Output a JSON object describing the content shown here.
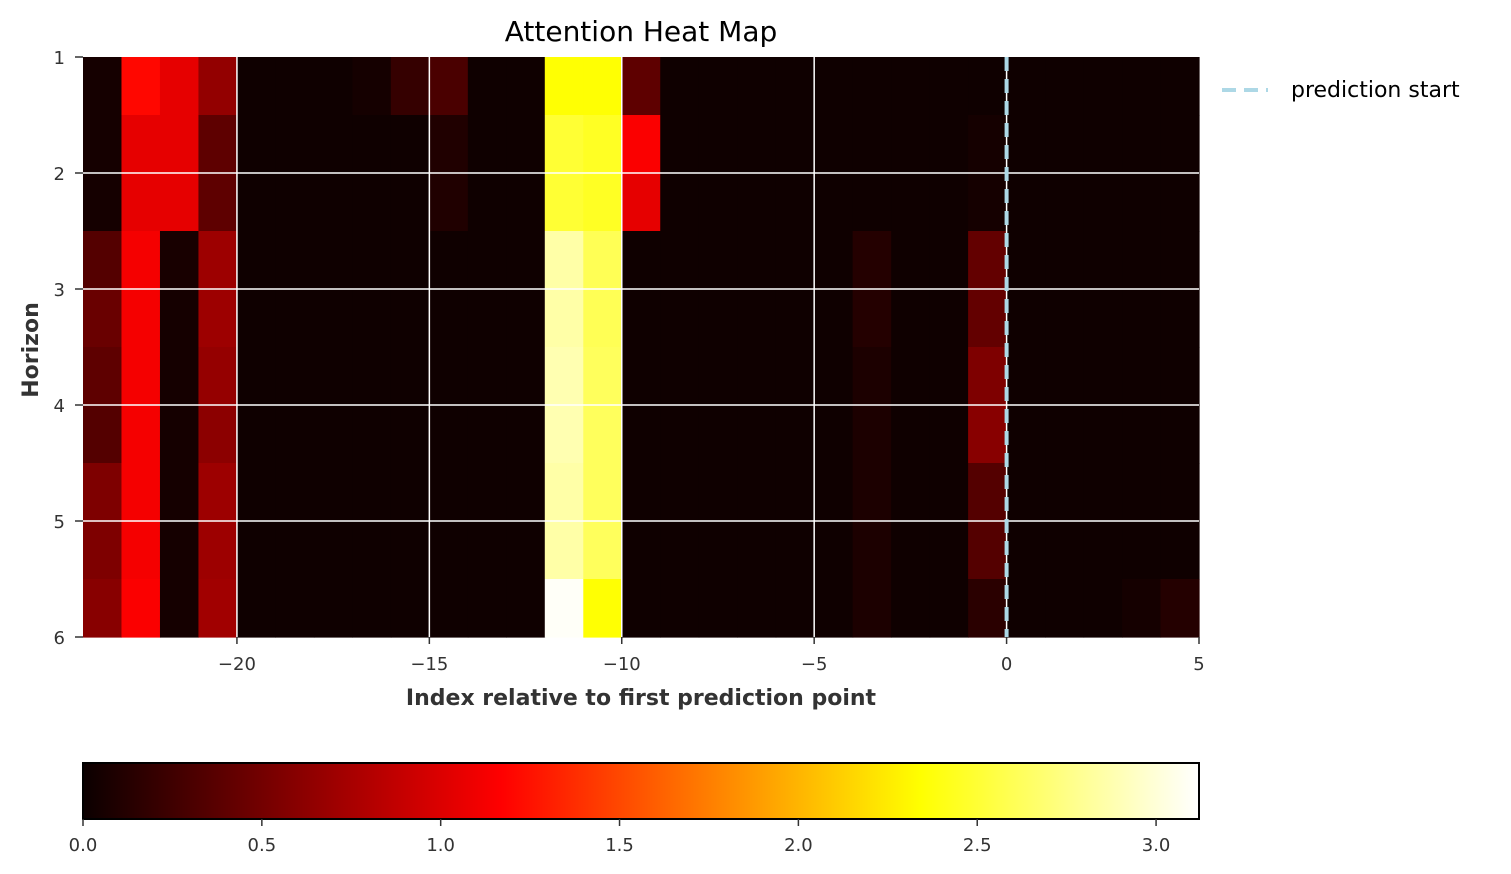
{
  "chart_data": {
    "type": "heatmap",
    "title": "Attention Heat Map",
    "xlabel": "Index relative to first prediction point",
    "ylabel": "Horizon",
    "x_range": [
      -24,
      5
    ],
    "y_range": [
      1,
      6
    ],
    "x_ticks": [
      -20,
      -15,
      -10,
      -5,
      0,
      5
    ],
    "x_tick_labels": [
      "−20",
      "−15",
      "−10",
      "−5",
      "0",
      "5"
    ],
    "y_ticks": [
      1,
      2,
      3,
      4,
      5,
      6
    ],
    "y_tick_labels": [
      "1",
      "2",
      "3",
      "4",
      "5",
      "6"
    ],
    "grid": true,
    "colormap": "hot",
    "colorbar": {
      "range": [
        0,
        3.12
      ],
      "ticks": [
        0,
        0.5,
        1.0,
        1.5,
        2.0,
        2.5,
        3.0
      ],
      "tick_labels": [
        "0.0",
        "0.5",
        "1.0",
        "1.5",
        "2.0",
        "2.5",
        "3.0"
      ]
    },
    "x": [
      -24,
      -23,
      -22,
      -21,
      -20,
      -19,
      -18,
      -17,
      -16,
      -15,
      -14,
      -13,
      -12,
      -11,
      -10,
      -9,
      -8,
      -7,
      -6,
      -5,
      -4,
      -3,
      -2,
      -1,
      0,
      1,
      2,
      3,
      4
    ],
    "y": [
      1,
      1.5,
      2,
      2.5,
      3,
      3.5,
      4,
      4.5,
      5,
      5.5
    ],
    "values": [
      [
        0.05,
        1.2,
        1.05,
        0.65,
        0.02,
        0.02,
        0.02,
        0.05,
        0.2,
        0.3,
        0.02,
        0.02,
        2.35,
        2.35,
        0.4,
        0.02,
        0.02,
        0.02,
        0.02,
        0.02,
        0.02,
        0.02,
        0.02,
        0.02,
        0.02,
        0.02,
        0.02,
        0.02,
        0.02
      ],
      [
        0.05,
        1.05,
        1.05,
        0.4,
        0.02,
        0.02,
        0.02,
        0.02,
        0.02,
        0.1,
        0.02,
        0.02,
        2.5,
        2.45,
        1.15,
        0.02,
        0.02,
        0.02,
        0.02,
        0.02,
        0.02,
        0.02,
        0.02,
        0.05,
        0.02,
        0.02,
        0.02,
        0.02,
        0.02
      ],
      [
        0.05,
        1.05,
        1.05,
        0.4,
        0.02,
        0.02,
        0.02,
        0.02,
        0.02,
        0.1,
        0.02,
        0.02,
        2.5,
        2.45,
        1.05,
        0.02,
        0.02,
        0.02,
        0.02,
        0.02,
        0.02,
        0.02,
        0.02,
        0.05,
        0.02,
        0.02,
        0.02,
        0.02,
        0.02
      ],
      [
        0.35,
        1.12,
        0.06,
        0.7,
        0.02,
        0.02,
        0.02,
        0.02,
        0.02,
        0.02,
        0.02,
        0.02,
        2.85,
        2.6,
        0.02,
        0.02,
        0.02,
        0.02,
        0.02,
        0.02,
        0.12,
        0.02,
        0.02,
        0.42,
        0.02,
        0.02,
        0.02,
        0.02,
        0.02
      ],
      [
        0.45,
        1.12,
        0.05,
        0.7,
        0.02,
        0.02,
        0.02,
        0.02,
        0.02,
        0.02,
        0.02,
        0.02,
        2.85,
        2.6,
        0.02,
        0.02,
        0.02,
        0.02,
        0.02,
        0.02,
        0.12,
        0.02,
        0.02,
        0.42,
        0.02,
        0.02,
        0.02,
        0.02,
        0.02
      ],
      [
        0.4,
        1.12,
        0.05,
        0.66,
        0.02,
        0.02,
        0.02,
        0.02,
        0.02,
        0.02,
        0.02,
        0.02,
        2.88,
        2.62,
        0.02,
        0.02,
        0.02,
        0.02,
        0.02,
        0.02,
        0.08,
        0.02,
        0.02,
        0.55,
        0.02,
        0.02,
        0.02,
        0.02,
        0.02
      ],
      [
        0.35,
        1.12,
        0.05,
        0.62,
        0.02,
        0.02,
        0.02,
        0.02,
        0.02,
        0.02,
        0.02,
        0.02,
        2.88,
        2.62,
        0.02,
        0.02,
        0.02,
        0.02,
        0.02,
        0.02,
        0.08,
        0.02,
        0.02,
        0.6,
        0.02,
        0.02,
        0.02,
        0.02,
        0.02
      ],
      [
        0.55,
        1.12,
        0.05,
        0.7,
        0.02,
        0.02,
        0.02,
        0.02,
        0.02,
        0.02,
        0.02,
        0.02,
        2.85,
        2.62,
        0.02,
        0.02,
        0.02,
        0.02,
        0.02,
        0.02,
        0.08,
        0.02,
        0.02,
        0.35,
        0.02,
        0.02,
        0.02,
        0.02,
        0.02
      ],
      [
        0.55,
        1.12,
        0.05,
        0.7,
        0.02,
        0.02,
        0.02,
        0.02,
        0.02,
        0.02,
        0.02,
        0.02,
        2.85,
        2.62,
        0.02,
        0.02,
        0.02,
        0.02,
        0.02,
        0.02,
        0.08,
        0.02,
        0.02,
        0.35,
        0.02,
        0.02,
        0.02,
        0.02,
        0.02
      ],
      [
        0.6,
        1.15,
        0.05,
        0.72,
        0.02,
        0.02,
        0.02,
        0.02,
        0.02,
        0.02,
        0.02,
        0.02,
        3.1,
        2.35,
        0.02,
        0.02,
        0.02,
        0.02,
        0.02,
        0.02,
        0.08,
        0.02,
        0.02,
        0.15,
        0.02,
        0.02,
        0.02,
        0.05,
        0.12
      ]
    ],
    "reference_line": {
      "x": 0,
      "label": "prediction start",
      "color": "#add8e6",
      "style": "dashed"
    },
    "legend": {
      "position": "top-right-outside",
      "entries": [
        "prediction start"
      ]
    }
  }
}
